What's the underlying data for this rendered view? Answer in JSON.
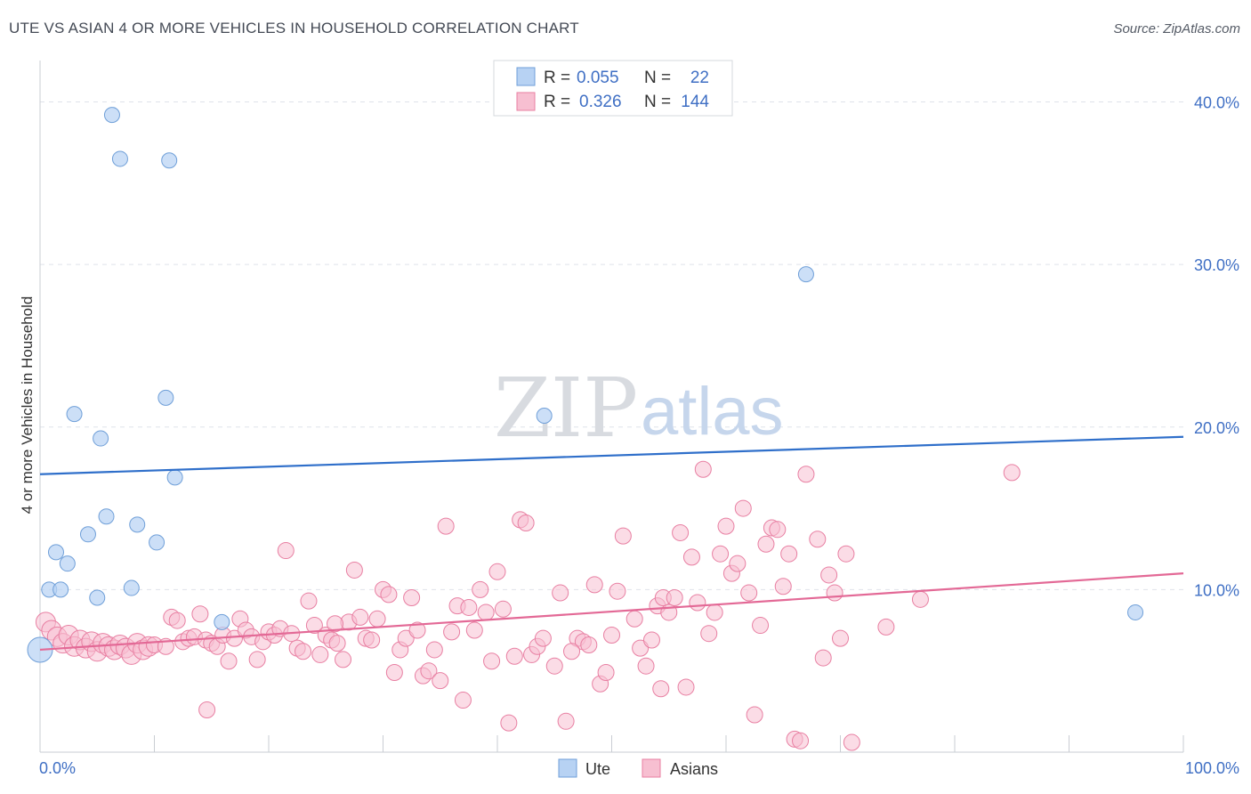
{
  "title": "UTE VS ASIAN 4 OR MORE VEHICLES IN HOUSEHOLD CORRELATION CHART",
  "source": "Source: ZipAtlas.com",
  "watermark": {
    "zip": "ZIP",
    "atlas": "atlas"
  },
  "colors": {
    "ute_fill": "#b7d2f3",
    "ute_stroke": "#6f9fd8",
    "ute_line": "#2f6fca",
    "asian_fill": "#f7bfd1",
    "asian_stroke": "#e87fa2",
    "asian_line": "#e36996",
    "tick_label": "#3f6fc4",
    "grid": "#dfe3ea"
  },
  "legend": {
    "ute": {
      "r_label": "R =",
      "r_value": "0.055",
      "n_label": "N =",
      "n_value": "22"
    },
    "asian": {
      "r_label": "R =",
      "r_value": "0.326",
      "n_label": "N =",
      "n_value": "144"
    }
  },
  "chart_data": {
    "type": "scatter",
    "title": "UTE VS ASIAN 4 OR MORE VEHICLES IN HOUSEHOLD CORRELATION CHART",
    "xlabel": "",
    "ylabel": "4 or more Vehicles in Household",
    "xlim": [
      0,
      100
    ],
    "ylim": [
      0,
      42
    ],
    "x_tick_labels": [
      "0.0%",
      "100.0%"
    ],
    "y_ticks": [
      10,
      20,
      30,
      40
    ],
    "y_tick_labels": [
      "10.0%",
      "20.0%",
      "30.0%",
      "40.0%"
    ],
    "grid": true,
    "legend_position": "top-center",
    "series": [
      {
        "name": "Ute",
        "r": 0.055,
        "n": 22,
        "trend": [
          [
            0,
            17.1
          ],
          [
            100,
            19.4
          ]
        ],
        "points": [
          [
            6.3,
            39.2
          ],
          [
            7.0,
            36.5
          ],
          [
            11.3,
            36.4
          ],
          [
            67.0,
            29.4
          ],
          [
            11.0,
            21.8
          ],
          [
            3.0,
            20.8
          ],
          [
            44.1,
            20.7
          ],
          [
            5.3,
            19.3
          ],
          [
            11.8,
            16.9
          ],
          [
            5.8,
            14.5
          ],
          [
            8.5,
            14.0
          ],
          [
            4.2,
            13.4
          ],
          [
            10.2,
            12.9
          ],
          [
            1.4,
            12.3
          ],
          [
            2.4,
            11.6
          ],
          [
            8.0,
            10.1
          ],
          [
            0.8,
            10.0
          ],
          [
            1.8,
            10.0
          ],
          [
            5.0,
            9.5
          ],
          [
            15.9,
            8.0
          ],
          [
            95.8,
            8.6
          ],
          [
            0.0,
            6.3
          ]
        ]
      },
      {
        "name": "Asians",
        "r": 0.326,
        "n": 144,
        "trend": [
          [
            0,
            6.3
          ],
          [
            100,
            11.0
          ]
        ],
        "points": [
          [
            0.5,
            8.0
          ],
          [
            1.0,
            7.5
          ],
          [
            1.5,
            7.1
          ],
          [
            2.0,
            6.7
          ],
          [
            2.5,
            7.2
          ],
          [
            3.0,
            6.5
          ],
          [
            3.5,
            6.9
          ],
          [
            4.0,
            6.4
          ],
          [
            4.5,
            6.8
          ],
          [
            5.0,
            6.2
          ],
          [
            5.5,
            6.7
          ],
          [
            6.0,
            6.5
          ],
          [
            6.5,
            6.3
          ],
          [
            7.0,
            6.6
          ],
          [
            7.5,
            6.4
          ],
          [
            8.0,
            6.0
          ],
          [
            8.5,
            6.7
          ],
          [
            9.0,
            6.3
          ],
          [
            9.5,
            6.5
          ],
          [
            10.0,
            6.6
          ],
          [
            11.0,
            6.5
          ],
          [
            11.5,
            8.3
          ],
          [
            12.0,
            8.1
          ],
          [
            12.5,
            6.8
          ],
          [
            13.0,
            7.0
          ],
          [
            13.5,
            7.1
          ],
          [
            14.0,
            8.5
          ],
          [
            14.5,
            6.9
          ],
          [
            15.0,
            6.7
          ],
          [
            15.5,
            6.5
          ],
          [
            16.0,
            7.2
          ],
          [
            16.5,
            5.6
          ],
          [
            17.0,
            7.0
          ],
          [
            17.5,
            8.2
          ],
          [
            18.0,
            7.5
          ],
          [
            18.5,
            7.1
          ],
          [
            19.0,
            5.7
          ],
          [
            19.5,
            6.8
          ],
          [
            20.0,
            7.4
          ],
          [
            20.5,
            7.2
          ],
          [
            21.0,
            7.6
          ],
          [
            21.5,
            12.4
          ],
          [
            22.0,
            7.3
          ],
          [
            22.5,
            6.4
          ],
          [
            23.0,
            6.2
          ],
          [
            23.5,
            9.3
          ],
          [
            24.0,
            7.8
          ],
          [
            24.5,
            6.0
          ],
          [
            25.0,
            7.2
          ],
          [
            25.5,
            6.9
          ],
          [
            26.0,
            6.7
          ],
          [
            26.5,
            5.7
          ],
          [
            27.0,
            8.0
          ],
          [
            27.5,
            11.2
          ],
          [
            28.0,
            8.3
          ],
          [
            28.5,
            7.0
          ],
          [
            29.5,
            8.2
          ],
          [
            30.0,
            10.0
          ],
          [
            30.5,
            9.7
          ],
          [
            31.0,
            4.9
          ],
          [
            31.5,
            6.3
          ],
          [
            32.0,
            7.0
          ],
          [
            32.5,
            9.5
          ],
          [
            33.0,
            7.5
          ],
          [
            33.5,
            4.7
          ],
          [
            34.0,
            5.0
          ],
          [
            34.5,
            6.3
          ],
          [
            35.0,
            4.4
          ],
          [
            35.5,
            13.9
          ],
          [
            36.0,
            7.4
          ],
          [
            36.5,
            9.0
          ],
          [
            37.0,
            3.2
          ],
          [
            37.5,
            8.9
          ],
          [
            38.0,
            7.5
          ],
          [
            38.5,
            10.0
          ],
          [
            39.0,
            8.6
          ],
          [
            39.5,
            5.6
          ],
          [
            40.0,
            11.1
          ],
          [
            40.5,
            8.8
          ],
          [
            41.0,
            1.8
          ],
          [
            41.5,
            5.9
          ],
          [
            42.0,
            14.3
          ],
          [
            42.5,
            14.1
          ],
          [
            43.0,
            6.0
          ],
          [
            43.5,
            6.5
          ],
          [
            44.0,
            7.0
          ],
          [
            45.0,
            5.3
          ],
          [
            45.5,
            9.8
          ],
          [
            46.0,
            1.9
          ],
          [
            47.0,
            7.0
          ],
          [
            47.5,
            6.8
          ],
          [
            48.0,
            6.6
          ],
          [
            48.5,
            10.3
          ],
          [
            49.0,
            4.2
          ],
          [
            49.5,
            4.9
          ],
          [
            50.0,
            7.2
          ],
          [
            50.5,
            9.9
          ],
          [
            51.0,
            13.3
          ],
          [
            52.0,
            8.2
          ],
          [
            52.5,
            6.4
          ],
          [
            53.0,
            5.3
          ],
          [
            53.5,
            6.9
          ],
          [
            54.0,
            9.0
          ],
          [
            54.5,
            9.5
          ],
          [
            55.0,
            8.6
          ],
          [
            55.5,
            9.5
          ],
          [
            56.0,
            13.5
          ],
          [
            56.5,
            4.0
          ],
          [
            57.0,
            12.0
          ],
          [
            57.5,
            9.2
          ],
          [
            58.0,
            17.4
          ],
          [
            58.5,
            7.3
          ],
          [
            59.0,
            8.6
          ],
          [
            59.5,
            12.2
          ],
          [
            60.0,
            13.9
          ],
          [
            60.5,
            11.0
          ],
          [
            61.0,
            11.6
          ],
          [
            61.5,
            15.0
          ],
          [
            62.0,
            9.8
          ],
          [
            62.5,
            2.3
          ],
          [
            63.0,
            7.8
          ],
          [
            63.5,
            12.8
          ],
          [
            64.0,
            13.8
          ],
          [
            64.5,
            13.7
          ],
          [
            65.0,
            10.2
          ],
          [
            65.5,
            12.2
          ],
          [
            66.0,
            0.8
          ],
          [
            66.5,
            0.7
          ],
          [
            67.0,
            17.1
          ],
          [
            68.0,
            13.1
          ],
          [
            68.5,
            5.8
          ],
          [
            69.0,
            10.9
          ],
          [
            69.5,
            9.8
          ],
          [
            70.0,
            7.0
          ],
          [
            70.5,
            12.2
          ],
          [
            71.0,
            0.6
          ],
          [
            74.0,
            7.7
          ],
          [
            77.0,
            9.4
          ],
          [
            85.0,
            17.2
          ],
          [
            46.5,
            6.2
          ],
          [
            54.3,
            3.9
          ],
          [
            29.0,
            6.9
          ],
          [
            25.8,
            7.9
          ],
          [
            14.6,
            2.6
          ]
        ]
      }
    ]
  },
  "bottom_legend": {
    "ute": "Ute",
    "asians": "Asians"
  }
}
